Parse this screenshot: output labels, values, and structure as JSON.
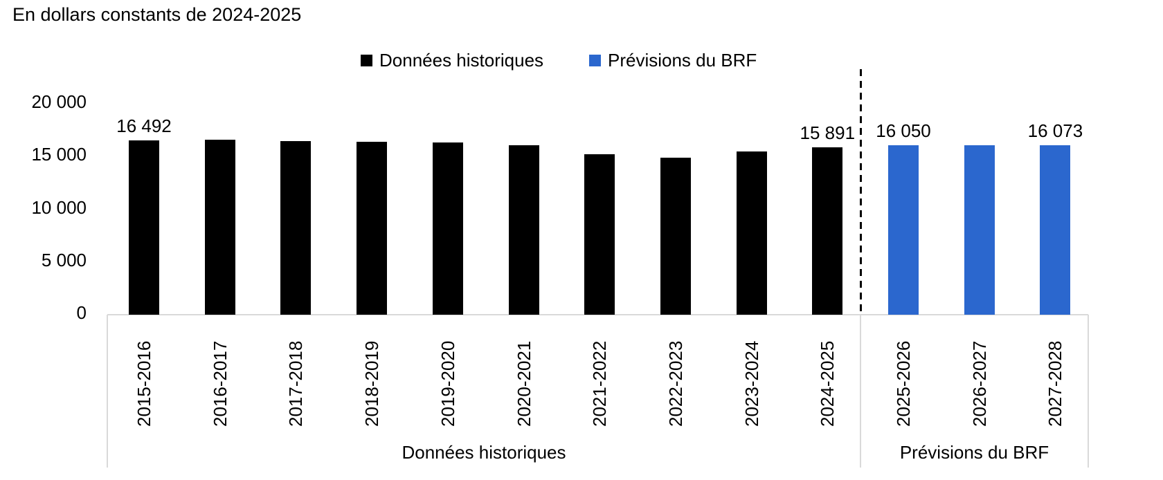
{
  "title": "En dollars constants de 2024-2025",
  "legend": {
    "items": [
      {
        "label": "Données historiques",
        "color": "#000000"
      },
      {
        "label": "Prévisions du BRF",
        "color": "#2B67CE"
      }
    ]
  },
  "chart_data": {
    "type": "bar",
    "title": "En dollars constants de 2024-2025",
    "xlabel": "",
    "ylabel": "",
    "ylim": [
      0,
      20000
    ],
    "grid": false,
    "legend_position": "top-center",
    "axis_line_color": "#D9D9D9",
    "categories": [
      "2015-2016",
      "2016-2017",
      "2017-2018",
      "2018-2019",
      "2019-2020",
      "2020-2021",
      "2021-2022",
      "2022-2023",
      "2023-2024",
      "2024-2025",
      "2025-2026",
      "2026-2027",
      "2027-2028"
    ],
    "series": [
      {
        "name": "Données historiques",
        "color": "#000000",
        "values": [
          16492,
          16575,
          16490,
          16425,
          16340,
          16080,
          15200,
          14880,
          15460,
          15891,
          null,
          null,
          null
        ]
      },
      {
        "name": "Prévisions du BRF",
        "color": "#2B67CE",
        "values": [
          null,
          null,
          null,
          null,
          null,
          null,
          null,
          null,
          null,
          null,
          16050,
          16060,
          16073
        ]
      }
    ],
    "data_labels": [
      {
        "category": "2015-2016",
        "text": "16 492"
      },
      {
        "category": "2024-2025",
        "text": "15 891"
      },
      {
        "category": "2025-2026",
        "text": "16 050"
      },
      {
        "category": "2027-2028",
        "text": "16 073"
      }
    ],
    "yticks": [
      {
        "value": 0,
        "label": "0"
      },
      {
        "value": 5000,
        "label": "5 000"
      },
      {
        "value": 10000,
        "label": "10 000"
      },
      {
        "value": 15000,
        "label": "15 000"
      },
      {
        "value": 20000,
        "label": "20 000"
      }
    ],
    "group_labels": [
      {
        "text": "Données historiques",
        "categories": [
          "2015-2016",
          "2024-2025"
        ]
      },
      {
        "text": "Prévisions du BRF",
        "categories": [
          "2025-2026",
          "2027-2028"
        ]
      }
    ],
    "separator": {
      "after_category": "2024-2025",
      "style": "dashed",
      "color": "#000000"
    }
  }
}
